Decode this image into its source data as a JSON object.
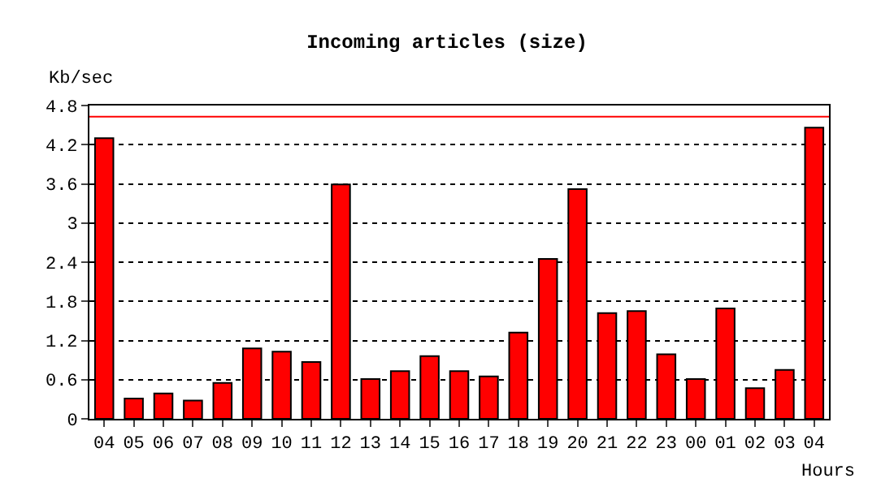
{
  "chart_data": {
    "type": "bar",
    "title": "Incoming articles (size)",
    "ylabel": "Kb/sec",
    "xlabel": "Hours",
    "categories": [
      "04",
      "05",
      "06",
      "07",
      "08",
      "09",
      "10",
      "11",
      "12",
      "13",
      "14",
      "15",
      "16",
      "17",
      "18",
      "19",
      "20",
      "21",
      "22",
      "23",
      "00",
      "01",
      "02",
      "03",
      "04"
    ],
    "values": [
      4.3,
      0.31,
      0.39,
      0.28,
      0.55,
      1.08,
      1.03,
      0.87,
      3.59,
      0.61,
      0.73,
      0.96,
      0.73,
      0.65,
      1.32,
      2.45,
      3.52,
      1.62,
      1.65,
      0.99,
      0.61,
      1.69,
      0.47,
      0.75,
      4.46
    ],
    "color": "#ff0000",
    "ylim": [
      0,
      4.8
    ],
    "yticks": [
      0,
      {
        "value": 0.6,
        "label": "0.6"
      },
      {
        "value": 1.2,
        "label": "1.2"
      },
      {
        "value": 1.8,
        "label": "1.8"
      },
      {
        "value": 2.4,
        "label": "2.4"
      },
      3,
      {
        "value": 3.6,
        "label": "3.6"
      },
      {
        "value": 4.2,
        "label": "4.2"
      },
      {
        "value": 4.8,
        "label": "4.8"
      }
    ],
    "grid": "y",
    "ref_lines": [
      {
        "axis": "y",
        "value": 4.63,
        "color": "#ff0000"
      }
    ]
  }
}
